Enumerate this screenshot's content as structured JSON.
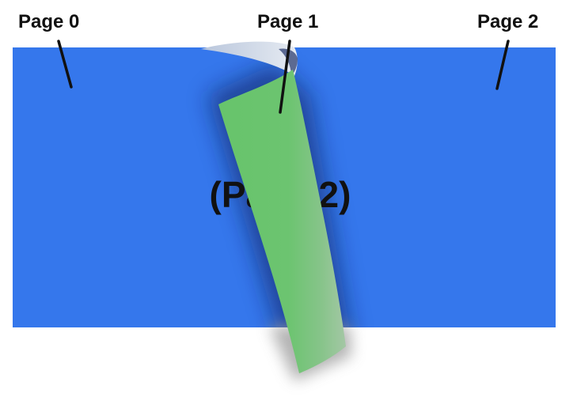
{
  "labels": {
    "page0": "Page 0",
    "page1": "Page 1",
    "page2": "Page 2"
  },
  "page_view": {
    "center_text": "(Page 2)"
  },
  "colors": {
    "page_blue": "#3577ec",
    "curl_green": "#6cc46f",
    "label_text": "#111111",
    "background": "#ffffff"
  }
}
